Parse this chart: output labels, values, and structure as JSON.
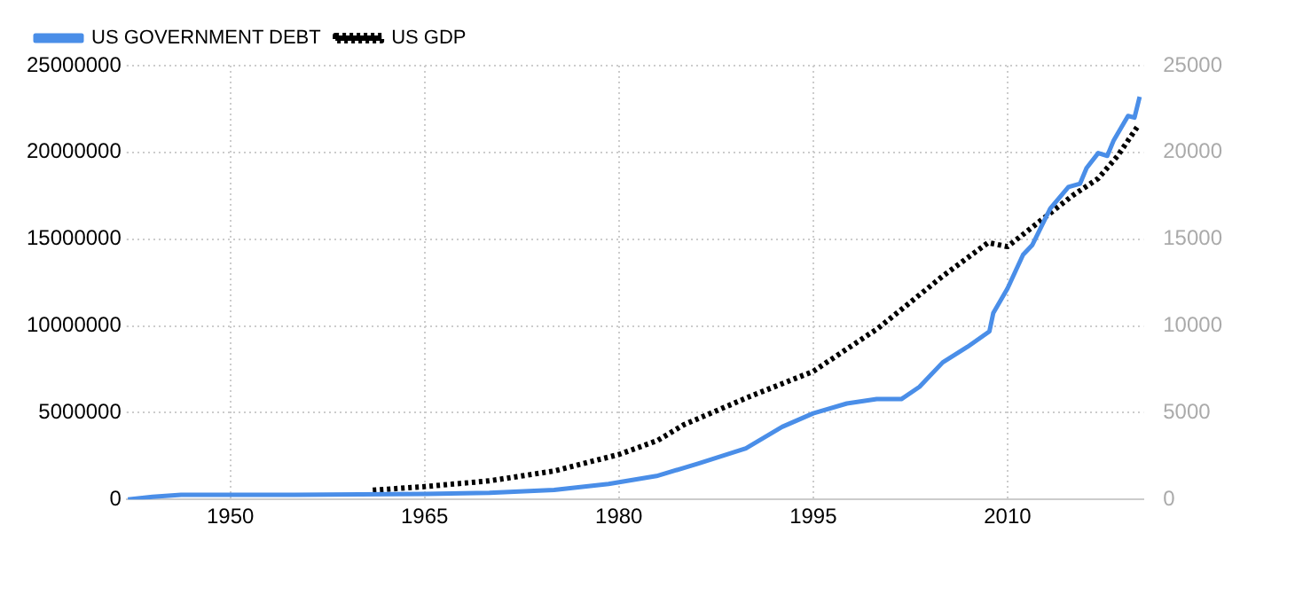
{
  "chart_data": {
    "type": "line",
    "xlim": [
      1942,
      2020.5
    ],
    "xticks": [
      1950,
      1965,
      1980,
      1995,
      2010
    ],
    "ylim": [
      0,
      25000000
    ],
    "yticks": [
      0,
      5000000,
      10000000,
      15000000,
      20000000,
      25000000
    ],
    "y2lim": [
      0,
      25000
    ],
    "y2ticks": [
      0,
      5000,
      10000,
      15000,
      20000,
      25000
    ],
    "grid": true,
    "legend": "top left",
    "marker": "none",
    "series": [
      {
        "name": "US GOVERNMENT DEBT",
        "color": "#4a8ee8",
        "axis": "y",
        "line_style": "solid",
        "x": [
          1942.1,
          1944,
          1946.2,
          1950,
          1955,
          1960,
          1965,
          1970,
          1975,
          1979.2,
          1982.9,
          1986.1,
          1989.8,
          1992.6,
          1995,
          1997.6,
          1999.9,
          2001.8,
          2003.2,
          2005,
          2006.9,
          2008.6,
          2008.9,
          2010,
          2011.2,
          2011.9,
          2013.3,
          2014.7,
          2015.6,
          2016.1,
          2017,
          2017.7,
          2018.2,
          2019.3,
          2019.8,
          2020.2
        ],
        "values": [
          0,
          150000,
          270000,
          260000,
          270000,
          290000,
          320000,
          380000,
          550000,
          890000,
          1350000,
          2060000,
          2940000,
          4180000,
          4960000,
          5530000,
          5780000,
          5780000,
          6490000,
          7900000,
          8790000,
          9680000,
          10740000,
          12160000,
          14100000,
          14650000,
          16770000,
          18000000,
          18200000,
          19100000,
          19960000,
          19800000,
          20700000,
          22100000,
          22000000,
          23200000
        ]
      },
      {
        "name": "US GDP",
        "color": "#000000",
        "axis": "y2",
        "line_style": "dotted",
        "x": [
          1961,
          1965,
          1970,
          1975,
          1980,
          1983,
          1985,
          1990,
          1995,
          2000,
          2005,
          2008.5,
          2010,
          2015,
          2017,
          2018.5,
          2020
        ],
        "values": [
          530,
          740,
          1070,
          1640,
          2590,
          3400,
          4300,
          5900,
          7380,
          9860,
          12870,
          14800,
          14570,
          17500,
          18500,
          19800,
          21450
        ]
      }
    ]
  }
}
